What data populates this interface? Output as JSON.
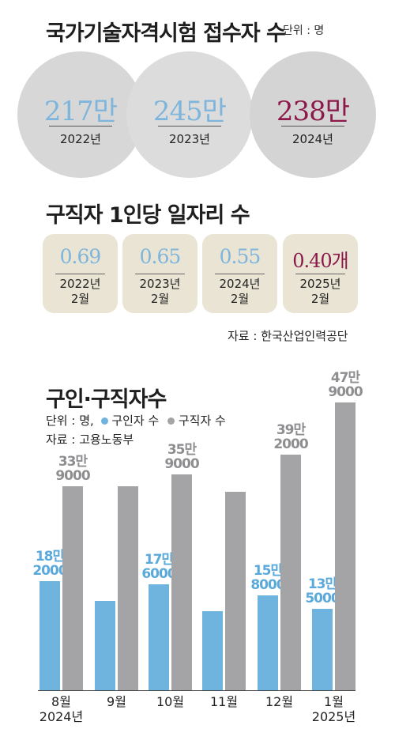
{
  "section1": {
    "title": "국가기술자격시험 접수자 수",
    "unit": "단위 : 명",
    "items": [
      {
        "value": "217만",
        "year": "2022년",
        "color": "#7eb5dc"
      },
      {
        "value": "245만",
        "year": "2023년",
        "color": "#7eb5dc"
      },
      {
        "value": "238만",
        "year": "2024년",
        "color": "#8b1a4a"
      }
    ]
  },
  "section2": {
    "title": "구직자 1인당 일자리 수",
    "items": [
      {
        "value": "0.69",
        "year": "2022년",
        "month": "2월",
        "color": "#7eb5dc"
      },
      {
        "value": "0.65",
        "year": "2023년",
        "month": "2월",
        "color": "#7eb5dc"
      },
      {
        "value": "0.55",
        "year": "2024년",
        "month": "2월",
        "color": "#7eb5dc"
      },
      {
        "value": "0.40개",
        "year": "2025년",
        "month": "2월",
        "color": "#8b1a4a"
      }
    ],
    "source": "자료 : 한국산업인력공단"
  },
  "section3": {
    "title": "구인·구직자수",
    "unit_prefix": "단위 : 명,",
    "legend_seekers_offers": "구인자 수",
    "legend_job_seekers": "구직자 수",
    "source": "자료 : 고용노동부"
  },
  "chart_data": {
    "type": "bar",
    "title": "구인·구직자수",
    "categories": [
      "8월\n2024년",
      "9월",
      "10월",
      "11월",
      "12월",
      "1월\n2025년"
    ],
    "series": [
      {
        "name": "구인자 수",
        "color": "#6fb3df",
        "values": [
          182000,
          149000,
          176000,
          132000,
          158000,
          135000
        ],
        "labels": [
          "18만\n2000",
          "",
          "17만\n6000",
          "",
          "15만\n8000",
          "13만\n5000"
        ]
      },
      {
        "name": "구직자 수",
        "color": "#a4a4a7",
        "values": [
          339000,
          340000,
          359000,
          330000,
          392000,
          479000
        ],
        "labels": [
          "33만\n9000",
          "",
          "35만\n9000",
          "",
          "39만\n2000",
          "47만\n9000"
        ]
      }
    ],
    "ylim": [
      0,
      500000
    ],
    "grid": false
  }
}
